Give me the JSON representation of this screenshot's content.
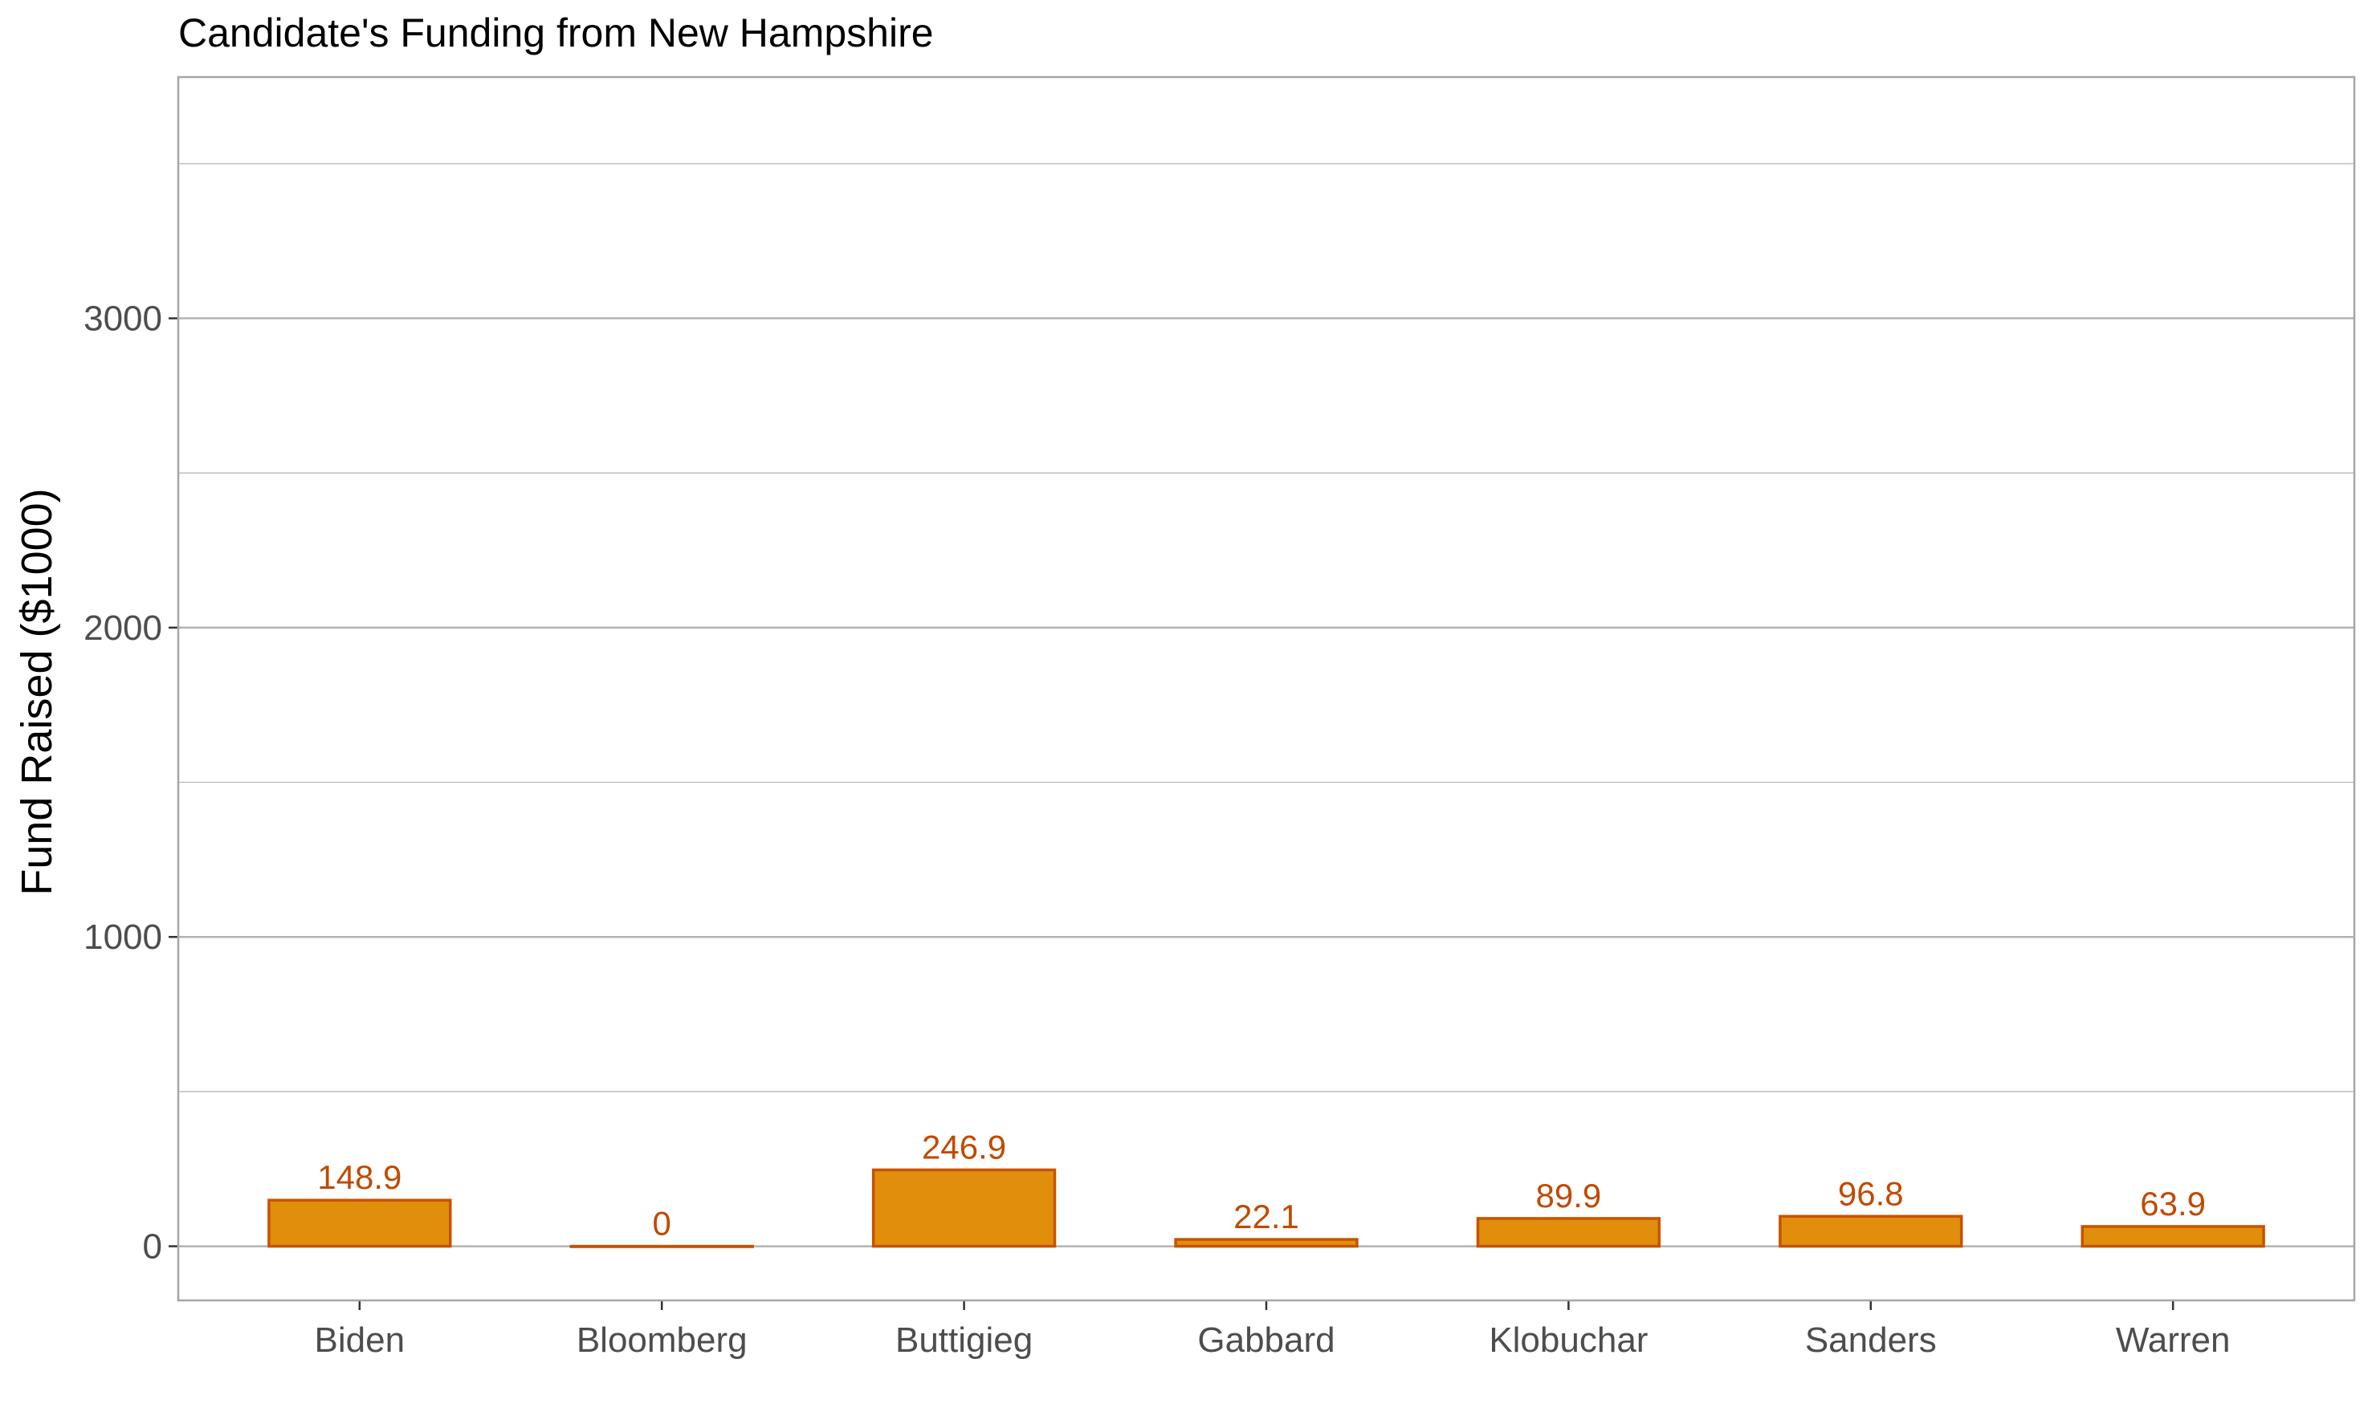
{
  "chart_data": {
    "type": "bar",
    "title": "Candidate's Funding from New Hampshire",
    "xlabel": "",
    "ylabel": "Fund Raised ($1000)",
    "categories": [
      "Biden",
      "Bloomberg",
      "Buttigieg",
      "Gabbard",
      "Klobuchar",
      "Sanders",
      "Warren"
    ],
    "values": [
      148.9,
      0,
      246.9,
      22.1,
      89.9,
      96.8,
      63.9
    ],
    "data_labels": [
      "148.9",
      "0",
      "246.9",
      "22.1",
      "89.9",
      "96.8",
      "63.9"
    ],
    "ylim": [
      -175,
      3780
    ],
    "yticks": [
      0,
      1000,
      2000,
      3000
    ],
    "ytick_labels": [
      "0",
      "1000",
      "2000",
      "3000"
    ],
    "grid": true,
    "legend": "none",
    "bar_fill": "#E08E0B",
    "bar_stroke": "#C85200",
    "label_color": "#C04A00",
    "grid_color": "#B3B3B3",
    "panel_border_color": "#A6A6A6"
  }
}
